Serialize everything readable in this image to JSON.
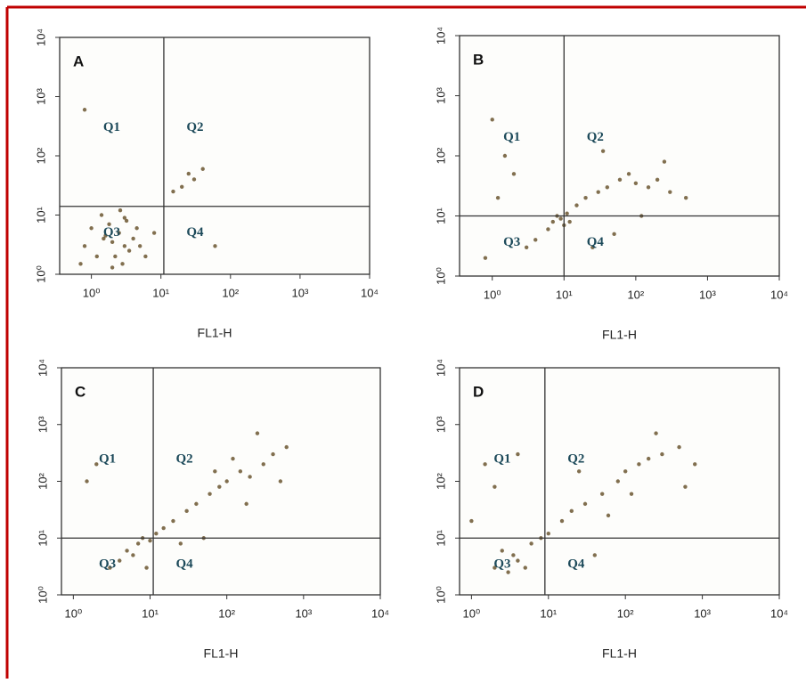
{
  "chart_data": [
    {
      "type": "scatter",
      "title": "A",
      "xlabel": "FL1-H",
      "log_scale": true,
      "xlim": [
        0.35,
        10000
      ],
      "ylim": [
        1,
        10000
      ],
      "xticks": [
        {
          "value": 1,
          "label": "10⁰"
        },
        {
          "value": 10,
          "label": "10¹"
        },
        {
          "value": 100,
          "label": "10²"
        },
        {
          "value": 1000,
          "label": "10³"
        },
        {
          "value": 10000,
          "label": "10⁴"
        }
      ],
      "yticks": [
        {
          "value": 1,
          "label": "10⁰"
        },
        {
          "value": 10,
          "label": "10¹"
        },
        {
          "value": 100,
          "label": "10²"
        },
        {
          "value": 1000,
          "label": "10³"
        },
        {
          "value": 10000,
          "label": "10⁴"
        }
      ],
      "gate_x": 11,
      "gate_y": 14,
      "quadrant_labels": [
        "Q1",
        "Q2",
        "Q3",
        "Q4"
      ],
      "series": [
        {
          "color": "#6b5630",
          "x": [
            0.8,
            1.2,
            1.5,
            2,
            2.5,
            3,
            3.5,
            4,
            1,
            1.8,
            2.2,
            2.8,
            3.2,
            5,
            6,
            0.7,
            1.4,
            2.6,
            4.5,
            8,
            20,
            25,
            30,
            40,
            15,
            60,
            0.8,
            2,
            3,
            1.6
          ],
          "y": [
            3,
            2,
            4,
            3.5,
            5,
            3,
            2.5,
            4,
            6,
            7,
            2,
            1.5,
            8,
            3,
            2,
            1.5,
            10,
            12,
            6,
            5,
            30,
            50,
            40,
            60,
            25,
            3,
            600,
            1.3,
            9,
            4.5
          ]
        }
      ]
    },
    {
      "type": "scatter",
      "title": "B",
      "xlabel": "FL1-H",
      "log_scale": true,
      "xlim": [
        0.35,
        10000
      ],
      "ylim": [
        1,
        10000
      ],
      "xticks": [
        {
          "value": 1,
          "label": "10⁰"
        },
        {
          "value": 10,
          "label": "10¹"
        },
        {
          "value": 100,
          "label": "10²"
        },
        {
          "value": 1000,
          "label": "10³"
        },
        {
          "value": 10000,
          "label": "10⁴"
        }
      ],
      "yticks": [
        {
          "value": 1,
          "label": "10⁰"
        },
        {
          "value": 10,
          "label": "10¹"
        },
        {
          "value": 100,
          "label": "10²"
        },
        {
          "value": 1000,
          "label": "10³"
        },
        {
          "value": 10000,
          "label": "10⁴"
        }
      ],
      "gate_x": 10,
      "gate_y": 10,
      "quadrant_labels": [
        "Q1",
        "Q2",
        "Q3",
        "Q4"
      ],
      "series": [
        {
          "color": "#6b5630",
          "x": [
            7,
            8,
            9,
            10,
            11,
            12,
            6,
            15,
            20,
            30,
            40,
            60,
            80,
            100,
            150,
            200,
            300,
            500,
            50,
            25,
            1,
            1.5,
            2,
            3,
            0.8,
            1.2,
            4,
            120,
            250,
            35
          ],
          "y": [
            8,
            10,
            9,
            7,
            11,
            8,
            6,
            15,
            20,
            25,
            30,
            40,
            50,
            35,
            30,
            40,
            25,
            20,
            5,
            3,
            400,
            100,
            50,
            3,
            2,
            20,
            4,
            10,
            80,
            120
          ]
        }
      ]
    },
    {
      "type": "scatter",
      "title": "C",
      "xlabel": "FL1-H",
      "log_scale": true,
      "xlim": [
        0.7,
        10000
      ],
      "ylim": [
        1,
        10000
      ],
      "xticks": [
        {
          "value": 1,
          "label": "10⁰"
        },
        {
          "value": 10,
          "label": "10¹"
        },
        {
          "value": 100,
          "label": "10²"
        },
        {
          "value": 1000,
          "label": "10³"
        },
        {
          "value": 10000,
          "label": "10⁴"
        }
      ],
      "yticks": [
        {
          "value": 1,
          "label": "10⁰"
        },
        {
          "value": 10,
          "label": "10¹"
        },
        {
          "value": 100,
          "label": "10²"
        },
        {
          "value": 1000,
          "label": "10³"
        },
        {
          "value": 10000,
          "label": "10⁴"
        }
      ],
      "gate_x": 11,
      "gate_y": 10,
      "quadrant_labels": [
        "Q1",
        "Q2",
        "Q3",
        "Q4"
      ],
      "series": [
        {
          "color": "#6b5630",
          "x": [
            4,
            5,
            6,
            7,
            8,
            10,
            12,
            15,
            20,
            30,
            40,
            60,
            80,
            100,
            150,
            200,
            300,
            400,
            600,
            250,
            120,
            50,
            2,
            3,
            1.5,
            25,
            500,
            180,
            9,
            70
          ],
          "y": [
            4,
            6,
            5,
            8,
            10,
            9,
            12,
            15,
            20,
            30,
            40,
            60,
            80,
            100,
            150,
            120,
            200,
            300,
            400,
            700,
            250,
            10,
            200,
            3,
            100,
            8,
            100,
            40,
            3,
            150
          ]
        }
      ]
    },
    {
      "type": "scatter",
      "title": "D",
      "xlabel": "FL1-H",
      "log_scale": true,
      "xlim": [
        0.7,
        10000
      ],
      "ylim": [
        1,
        10000
      ],
      "xticks": [
        {
          "value": 1,
          "label": "10⁰"
        },
        {
          "value": 10,
          "label": "10¹"
        },
        {
          "value": 100,
          "label": "10²"
        },
        {
          "value": 1000,
          "label": "10³"
        },
        {
          "value": 10000,
          "label": "10⁴"
        }
      ],
      "yticks": [
        {
          "value": 1,
          "label": "10⁰"
        },
        {
          "value": 10,
          "label": "10¹"
        },
        {
          "value": 100,
          "label": "10²"
        },
        {
          "value": 1000,
          "label": "10³"
        },
        {
          "value": 10000,
          "label": "10⁴"
        }
      ],
      "gate_x": 9,
      "gate_y": 10,
      "quadrant_labels": [
        "Q1",
        "Q2",
        "Q3",
        "Q4"
      ],
      "series": [
        {
          "color": "#6b5630",
          "x": [
            2,
            3,
            4,
            5,
            3.5,
            2.5,
            6,
            8,
            10,
            15,
            20,
            30,
            50,
            80,
            100,
            150,
            200,
            300,
            500,
            800,
            250,
            120,
            60,
            1.5,
            2,
            4,
            40,
            600,
            1,
            25
          ],
          "y": [
            3,
            2.5,
            4,
            3,
            5,
            6,
            8,
            10,
            12,
            20,
            30,
            40,
            60,
            100,
            150,
            200,
            250,
            300,
            400,
            200,
            700,
            60,
            25,
            200,
            80,
            300,
            5,
            80,
            20,
            150
          ]
        }
      ]
    }
  ]
}
